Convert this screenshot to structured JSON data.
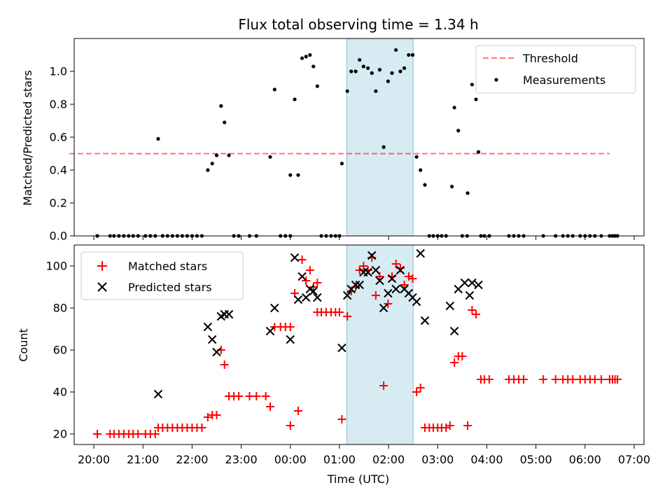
{
  "chart_data": [
    {
      "type": "scatter",
      "title": "Flux total observing time = 1.34 h",
      "ylabel": "Matched/Predicted stars",
      "ylim": [
        0,
        1.2
      ],
      "yticks": [
        "0.0",
        "0.2",
        "0.4",
        "0.6",
        "0.8",
        "1.0"
      ],
      "xlim_hours": [
        19.6,
        31.2
      ],
      "highlight_hours": [
        25.15,
        26.5
      ],
      "highlight_color": "#add8e6",
      "legend_position": "upper-right",
      "threshold": {
        "name": "Threshold",
        "value": 0.5,
        "x_hours": [
          19.5,
          30.5
        ],
        "color": "#ff0000"
      },
      "series": [
        {
          "name": "Measurements",
          "color": "#000000",
          "points": [
            [
              20.07,
              0
            ],
            [
              20.33,
              0
            ],
            [
              20.41,
              0
            ],
            [
              20.51,
              0
            ],
            [
              20.61,
              0
            ],
            [
              20.71,
              0
            ],
            [
              20.8,
              0
            ],
            [
              20.9,
              0
            ],
            [
              21.05,
              0
            ],
            [
              21.15,
              0
            ],
            [
              21.25,
              0
            ],
            [
              21.31,
              0.59
            ],
            [
              21.4,
              0
            ],
            [
              21.5,
              0
            ],
            [
              21.6,
              0
            ],
            [
              21.7,
              0
            ],
            [
              21.8,
              0
            ],
            [
              21.9,
              0
            ],
            [
              22.0,
              0
            ],
            [
              22.1,
              0
            ],
            [
              22.2,
              0
            ],
            [
              22.32,
              0.4
            ],
            [
              22.41,
              0.44
            ],
            [
              22.5,
              0.49
            ],
            [
              22.59,
              0.79
            ],
            [
              22.66,
              0.69
            ],
            [
              22.75,
              0.49
            ],
            [
              22.85,
              0
            ],
            [
              22.95,
              0
            ],
            [
              23.17,
              0
            ],
            [
              23.31,
              0
            ],
            [
              23.59,
              0.48
            ],
            [
              23.68,
              0.89
            ],
            [
              23.8,
              0
            ],
            [
              23.9,
              0
            ],
            [
              24.0,
              0
            ],
            [
              24.0,
              0.37
            ],
            [
              24.09,
              0.83
            ],
            [
              24.16,
              0.37
            ],
            [
              24.24,
              1.08
            ],
            [
              24.32,
              1.09
            ],
            [
              24.4,
              1.1
            ],
            [
              24.47,
              1.03
            ],
            [
              24.55,
              0.91
            ],
            [
              24.63,
              0
            ],
            [
              24.73,
              0
            ],
            [
              24.83,
              0
            ],
            [
              24.92,
              0
            ],
            [
              25.0,
              0
            ],
            [
              25.05,
              0.44
            ],
            [
              25.16,
              0.88
            ],
            [
              25.24,
              1.0
            ],
            [
              25.33,
              1.0
            ],
            [
              25.41,
              1.07
            ],
            [
              25.49,
              1.03
            ],
            [
              25.58,
              1.02
            ],
            [
              25.66,
              0.99
            ],
            [
              25.74,
              0.88
            ],
            [
              25.82,
              1.01
            ],
            [
              25.9,
              0.54
            ],
            [
              25.99,
              0.94
            ],
            [
              26.07,
              0.99
            ],
            [
              26.15,
              1.13
            ],
            [
              26.24,
              1.0
            ],
            [
              26.32,
              1.02
            ],
            [
              26.41,
              1.1
            ],
            [
              26.49,
              1.1
            ],
            [
              26.57,
              0.48
            ],
            [
              26.65,
              0.4
            ],
            [
              26.74,
              0.31
            ],
            [
              26.83,
              0
            ],
            [
              26.91,
              0
            ],
            [
              27.0,
              0
            ],
            [
              27.08,
              0
            ],
            [
              27.17,
              0
            ],
            [
              27.29,
              0.3
            ],
            [
              27.34,
              0.78
            ],
            [
              27.42,
              0.64
            ],
            [
              27.5,
              0
            ],
            [
              27.6,
              0
            ],
            [
              27.61,
              0.26
            ],
            [
              27.7,
              0.92
            ],
            [
              27.78,
              0.83
            ],
            [
              27.83,
              0.51
            ],
            [
              27.88,
              0
            ],
            [
              27.95,
              0
            ],
            [
              28.05,
              0
            ],
            [
              28.45,
              0
            ],
            [
              28.55,
              0
            ],
            [
              28.65,
              0
            ],
            [
              28.75,
              0
            ],
            [
              29.15,
              0
            ],
            [
              29.4,
              0
            ],
            [
              29.55,
              0
            ],
            [
              29.65,
              0
            ],
            [
              29.75,
              0
            ],
            [
              29.9,
              0
            ],
            [
              30.0,
              0
            ],
            [
              30.1,
              0
            ],
            [
              30.2,
              0
            ],
            [
              30.33,
              0
            ],
            [
              30.5,
              0
            ],
            [
              30.56,
              0
            ],
            [
              30.61,
              0
            ],
            [
              30.66,
              0
            ]
          ]
        }
      ]
    },
    {
      "type": "scatter",
      "xlabel": "Time (UTC)",
      "ylabel": "Count",
      "ylim": [
        15,
        110
      ],
      "yticks": [
        "20",
        "40",
        "60",
        "80",
        "100"
      ],
      "xticks": [
        "20:00",
        "21:00",
        "22:00",
        "23:00",
        "00:00",
        "01:00",
        "02:00",
        "03:00",
        "04:00",
        "05:00",
        "06:00",
        "07:00"
      ],
      "xlim_hours": [
        19.6,
        31.2
      ],
      "highlight_hours": [
        25.15,
        26.5
      ],
      "highlight_color": "#add8e6",
      "legend_position": "upper-left",
      "series": [
        {
          "name": "Matched stars",
          "marker": "plus",
          "color": "#ff0000",
          "points": [
            [
              20.07,
              20
            ],
            [
              20.33,
              20
            ],
            [
              20.41,
              20
            ],
            [
              20.51,
              20
            ],
            [
              20.61,
              20
            ],
            [
              20.71,
              20
            ],
            [
              20.8,
              20
            ],
            [
              20.9,
              20
            ],
            [
              21.05,
              20
            ],
            [
              21.15,
              20
            ],
            [
              21.25,
              20
            ],
            [
              21.31,
              23
            ],
            [
              21.4,
              23
            ],
            [
              21.5,
              23
            ],
            [
              21.6,
              23
            ],
            [
              21.7,
              23
            ],
            [
              21.8,
              23
            ],
            [
              21.9,
              23
            ],
            [
              22.0,
              23
            ],
            [
              22.1,
              23
            ],
            [
              22.2,
              23
            ],
            [
              22.32,
              28
            ],
            [
              22.41,
              29
            ],
            [
              22.5,
              29
            ],
            [
              22.59,
              60
            ],
            [
              22.66,
              53
            ],
            [
              22.75,
              38
            ],
            [
              22.85,
              38
            ],
            [
              22.95,
              38
            ],
            [
              23.17,
              38
            ],
            [
              23.31,
              38
            ],
            [
              23.5,
              38
            ],
            [
              23.59,
              33
            ],
            [
              23.68,
              71
            ],
            [
              23.8,
              71
            ],
            [
              23.9,
              71
            ],
            [
              24.0,
              71
            ],
            [
              24.0,
              24
            ],
            [
              24.09,
              87
            ],
            [
              24.16,
              31
            ],
            [
              24.24,
              103
            ],
            [
              24.32,
              93
            ],
            [
              24.4,
              98
            ],
            [
              24.47,
              90
            ],
            [
              24.55,
              92
            ],
            [
              24.55,
              78
            ],
            [
              24.63,
              78
            ],
            [
              24.73,
              78
            ],
            [
              24.83,
              78
            ],
            [
              24.92,
              78
            ],
            [
              25.0,
              78
            ],
            [
              25.05,
              27
            ],
            [
              25.16,
              76
            ],
            [
              25.24,
              88
            ],
            [
              25.33,
              90
            ],
            [
              25.41,
              98
            ],
            [
              25.49,
              100
            ],
            [
              25.58,
              98
            ],
            [
              25.66,
              104
            ],
            [
              25.74,
              86
            ],
            [
              25.82,
              95
            ],
            [
              25.9,
              43
            ],
            [
              25.99,
              82
            ],
            [
              26.07,
              95
            ],
            [
              26.15,
              101
            ],
            [
              26.24,
              99
            ],
            [
              26.32,
              91
            ],
            [
              26.41,
              95
            ],
            [
              26.49,
              94
            ],
            [
              26.57,
              40
            ],
            [
              26.65,
              42
            ],
            [
              26.74,
              23
            ],
            [
              26.83,
              23
            ],
            [
              26.91,
              23
            ],
            [
              27.0,
              23
            ],
            [
              27.08,
              23
            ],
            [
              27.17,
              23
            ],
            [
              27.25,
              24
            ],
            [
              27.34,
              54
            ],
            [
              27.42,
              57
            ],
            [
              27.5,
              57
            ],
            [
              27.61,
              24
            ],
            [
              27.7,
              79
            ],
            [
              27.78,
              77
            ],
            [
              27.88,
              46
            ],
            [
              27.95,
              46
            ],
            [
              28.05,
              46
            ],
            [
              28.45,
              46
            ],
            [
              28.55,
              46
            ],
            [
              28.65,
              46
            ],
            [
              28.75,
              46
            ],
            [
              29.15,
              46
            ],
            [
              29.4,
              46
            ],
            [
              29.55,
              46
            ],
            [
              29.65,
              46
            ],
            [
              29.75,
              46
            ],
            [
              29.9,
              46
            ],
            [
              30.0,
              46
            ],
            [
              30.1,
              46
            ],
            [
              30.2,
              46
            ],
            [
              30.33,
              46
            ],
            [
              30.5,
              46
            ],
            [
              30.56,
              46
            ],
            [
              30.61,
              46
            ],
            [
              30.66,
              46
            ]
          ]
        },
        {
          "name": "Predicted stars",
          "marker": "x",
          "color": "#000000",
          "points": [
            [
              21.31,
              39
            ],
            [
              22.32,
              71
            ],
            [
              22.41,
              65
            ],
            [
              22.5,
              59
            ],
            [
              22.59,
              76
            ],
            [
              22.66,
              77
            ],
            [
              22.75,
              77
            ],
            [
              23.59,
              69
            ],
            [
              23.68,
              80
            ],
            [
              24.0,
              65
            ],
            [
              24.09,
              104
            ],
            [
              24.16,
              84
            ],
            [
              24.24,
              95
            ],
            [
              24.32,
              85
            ],
            [
              24.4,
              89
            ],
            [
              24.47,
              88
            ],
            [
              24.55,
              85
            ],
            [
              25.05,
              61
            ],
            [
              25.16,
              86
            ],
            [
              25.24,
              89
            ],
            [
              25.33,
              91
            ],
            [
              25.41,
              91
            ],
            [
              25.49,
              97
            ],
            [
              25.58,
              97
            ],
            [
              25.66,
              105
            ],
            [
              25.74,
              98
            ],
            [
              25.82,
              93
            ],
            [
              25.9,
              80
            ],
            [
              25.99,
              87
            ],
            [
              26.07,
              94
            ],
            [
              26.15,
              89
            ],
            [
              26.24,
              98
            ],
            [
              26.32,
              89
            ],
            [
              26.41,
              87
            ],
            [
              26.49,
              85
            ],
            [
              26.57,
              83
            ],
            [
              26.65,
              106
            ],
            [
              26.74,
              74
            ],
            [
              27.25,
              81
            ],
            [
              27.34,
              69
            ],
            [
              27.42,
              89
            ],
            [
              27.55,
              92
            ],
            [
              27.65,
              86
            ],
            [
              27.7,
              92
            ],
            [
              27.83,
              91
            ]
          ]
        }
      ]
    }
  ]
}
